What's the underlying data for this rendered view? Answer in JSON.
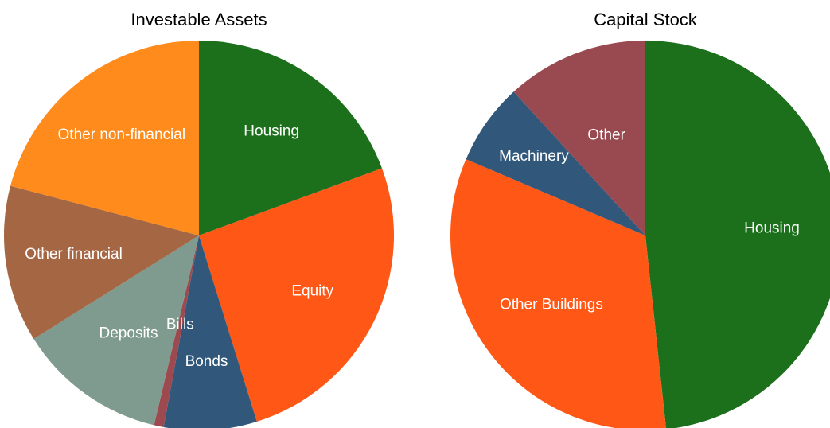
{
  "chart_data": [
    {
      "type": "pie",
      "title": "Investable Assets",
      "categories": [
        "Housing",
        "Equity",
        "Bonds",
        "Bills",
        "Deposits",
        "Other financial",
        "Other non-financial"
      ],
      "values": [
        19.4,
        25.8,
        7.7,
        0.8,
        12.4,
        13,
        20.9
      ],
      "colors": [
        "#1c701c",
        "#fe5716",
        "#31587b",
        "#9c4a50",
        "#7f9a8e",
        "#a56643",
        "#fe8b1b"
      ]
    },
    {
      "type": "pie",
      "title": "Capital Stock",
      "categories": [
        "Housing",
        "Other Buildings",
        "Machinery",
        "Other"
      ],
      "values": [
        48.3,
        33.1,
        6.8,
        11.8
      ],
      "colors": [
        "#1c701c",
        "#fe5716",
        "#31587b",
        "#994a50"
      ]
    }
  ]
}
